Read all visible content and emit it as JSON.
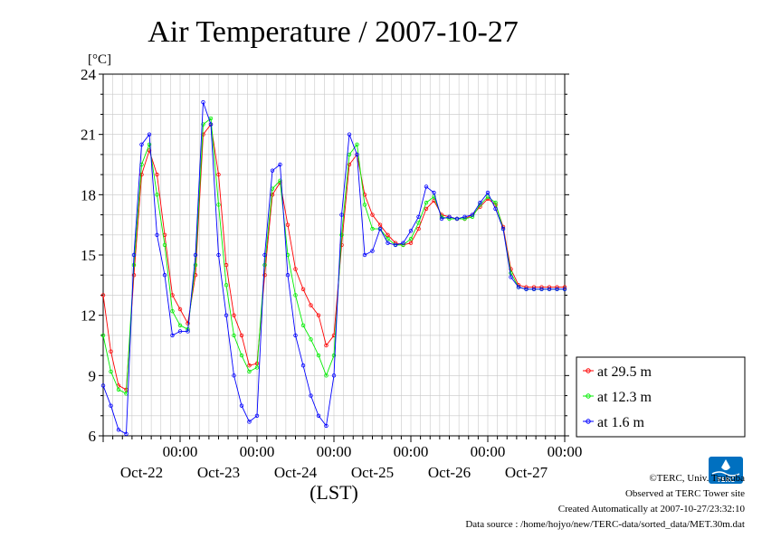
{
  "chart_data": {
    "type": "line",
    "title": "Air Temperature / 2007-10-27",
    "ylabel": "[°C]",
    "xlabel": "(LST)",
    "ylim": [
      6,
      24
    ],
    "yticks": [
      6,
      9,
      12,
      15,
      18,
      21,
      24
    ],
    "xlim": [
      0,
      6
    ],
    "xtick_labels": [
      {
        "x": 1.0,
        "time": "00:00",
        "date": "Oct-22"
      },
      {
        "x": 2.0,
        "time": "00:00",
        "date": "Oct-23"
      },
      {
        "x": 3.0,
        "time": "00:00",
        "date": "Oct-24"
      },
      {
        "x": 4.0,
        "time": "00:00",
        "date": "Oct-25"
      },
      {
        "x": 5.0,
        "time": "00:00",
        "date": "Oct-26"
      },
      {
        "x": 6.0,
        "time": "00:00",
        "date": "Oct-27"
      }
    ],
    "grid": true,
    "legend_position": "right",
    "series": [
      {
        "name": "at 29.5 m",
        "color": "#ff0000",
        "x": [
          0,
          0.1,
          0.2,
          0.3,
          0.4,
          0.5,
          0.6,
          0.7,
          0.8,
          0.9,
          1.0,
          1.1,
          1.2,
          1.3,
          1.4,
          1.5,
          1.6,
          1.7,
          1.8,
          1.9,
          2.0,
          2.1,
          2.2,
          2.3,
          2.4,
          2.5,
          2.6,
          2.7,
          2.8,
          2.9,
          3.0,
          3.1,
          3.2,
          3.3,
          3.4,
          3.5,
          3.6,
          3.7,
          3.8,
          3.9,
          4.0,
          4.1,
          4.2,
          4.3,
          4.4,
          4.5,
          4.6,
          4.7,
          4.8,
          4.9,
          5.0,
          5.1,
          5.2,
          5.3,
          5.4,
          5.5,
          5.6,
          5.7,
          5.8,
          5.9,
          6.0
        ],
        "y": [
          13,
          10.2,
          8.5,
          8.3,
          14,
          19,
          20.2,
          19,
          16,
          13,
          12.3,
          11.6,
          14,
          21,
          21.5,
          19,
          14.5,
          12,
          11,
          9.5,
          9.6,
          14,
          18,
          18.6,
          16.5,
          14.3,
          13.3,
          12.5,
          12,
          10.5,
          11,
          15.5,
          19.5,
          20,
          18,
          17,
          16.5,
          16,
          15.6,
          15.5,
          15.6,
          16.3,
          17.3,
          17.7,
          17,
          16.9,
          16.8,
          16.8,
          17,
          17.4,
          17.8,
          17.5,
          16.4,
          14.3,
          13.5,
          13.4,
          13.4,
          13.4,
          13.4,
          13.4,
          13.4
        ]
      },
      {
        "name": "at 12.3 m",
        "color": "#00ee00",
        "x": [
          0,
          0.1,
          0.2,
          0.3,
          0.4,
          0.5,
          0.6,
          0.7,
          0.8,
          0.9,
          1.0,
          1.1,
          1.2,
          1.3,
          1.4,
          1.5,
          1.6,
          1.7,
          1.8,
          1.9,
          2.0,
          2.1,
          2.2,
          2.3,
          2.4,
          2.5,
          2.6,
          2.7,
          2.8,
          2.9,
          3.0,
          3.1,
          3.2,
          3.3,
          3.4,
          3.5,
          3.6,
          3.7,
          3.8,
          3.9,
          4.0,
          4.1,
          4.2,
          4.3,
          4.4,
          4.5,
          4.6,
          4.7,
          4.8,
          4.9,
          5.0,
          5.1,
          5.2,
          5.3,
          5.4,
          5.5,
          5.6,
          5.7,
          5.8,
          5.9,
          6.0
        ],
        "y": [
          11,
          9.2,
          8.3,
          8.1,
          14.5,
          19.5,
          20.5,
          18,
          15.5,
          12.2,
          11.5,
          11.3,
          14.5,
          21.5,
          21.8,
          17.5,
          13.5,
          11,
          10,
          9.2,
          9.4,
          14.5,
          18.3,
          18.7,
          15,
          13,
          11.5,
          10.8,
          10,
          9,
          10,
          16,
          20,
          20.5,
          17.5,
          16.3,
          16.3,
          15.8,
          15.5,
          15.5,
          15.8,
          16.6,
          17.6,
          17.9,
          16.9,
          16.8,
          16.8,
          16.8,
          16.9,
          17.5,
          17.9,
          17.6,
          16.3,
          14.1,
          13.4,
          13.3,
          13.3,
          13.3,
          13.3,
          13.3,
          13.3
        ]
      },
      {
        "name": "at 1.6 m",
        "color": "#0000ff",
        "x": [
          0,
          0.1,
          0.2,
          0.3,
          0.4,
          0.5,
          0.6,
          0.7,
          0.8,
          0.9,
          1.0,
          1.1,
          1.2,
          1.3,
          1.4,
          1.5,
          1.6,
          1.7,
          1.8,
          1.9,
          2.0,
          2.1,
          2.2,
          2.3,
          2.4,
          2.5,
          2.6,
          2.7,
          2.8,
          2.9,
          3.0,
          3.1,
          3.2,
          3.3,
          3.4,
          3.5,
          3.6,
          3.7,
          3.8,
          3.9,
          4.0,
          4.1,
          4.2,
          4.3,
          4.4,
          4.5,
          4.6,
          4.7,
          4.8,
          4.9,
          5.0,
          5.1,
          5.2,
          5.3,
          5.4,
          5.5,
          5.6,
          5.7,
          5.8,
          5.9,
          6.0
        ],
        "y": [
          8.5,
          7.5,
          6.3,
          6.1,
          15,
          20.5,
          21,
          16,
          14,
          11,
          11.2,
          11.2,
          15,
          22.6,
          21.5,
          15,
          12,
          9,
          7.5,
          6.7,
          7,
          15,
          19.2,
          19.5,
          14,
          11,
          9.5,
          8,
          7,
          6.5,
          9,
          17,
          21,
          20,
          15,
          15.2,
          16.3,
          15.6,
          15.5,
          15.6,
          16.2,
          16.9,
          18.4,
          18.1,
          16.8,
          16.9,
          16.8,
          16.9,
          17,
          17.6,
          18.1,
          17.3,
          16.3,
          13.9,
          13.4,
          13.3,
          13.3,
          13.3,
          13.3,
          13.3,
          13.3
        ]
      }
    ]
  },
  "footer": {
    "copyright": "©TERC, Univ. Tsukuba",
    "observed": "Observed at TERC Tower site",
    "created": "Created Automatically at 2007-10-27/23:32:10",
    "source": "Data source : /home/hojyo/new/TERC-data/sorted_data/MET.30m.dat"
  },
  "logo": {
    "text": "TERC",
    "color": "#0070c0"
  }
}
